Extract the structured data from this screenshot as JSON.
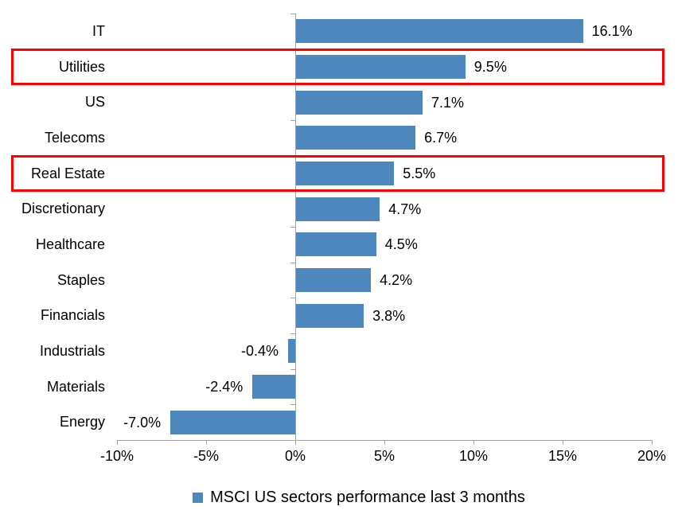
{
  "chart_data": {
    "type": "bar",
    "orientation": "horizontal",
    "title": "",
    "categories": [
      "IT",
      "Utilities",
      "US",
      "Telecoms",
      "Real Estate",
      "Discretionary",
      "Healthcare",
      "Staples",
      "Financials",
      "Industrials",
      "Materials",
      "Energy"
    ],
    "values": [
      16.1,
      9.5,
      7.1,
      6.7,
      5.5,
      4.7,
      4.5,
      4.2,
      3.8,
      -0.4,
      -2.4,
      -7.0
    ],
    "value_labels": [
      "16.1%",
      "9.5%",
      "7.1%",
      "6.7%",
      "5.5%",
      "4.7%",
      "4.5%",
      "4.2%",
      "3.8%",
      "-0.4%",
      "-2.4%",
      "-7.0%"
    ],
    "highlighted_categories": [
      "Utilities",
      "Real Estate"
    ],
    "x_axis": {
      "min": -10,
      "max": 20,
      "tick_values": [
        -10,
        -5,
        0,
        5,
        10,
        15,
        20
      ],
      "tick_labels": [
        "-10%",
        "-5%",
        "0%",
        "5%",
        "10%",
        "15%",
        "20%"
      ]
    },
    "ylabel": "",
    "xlabel": "",
    "grid": false,
    "legend": {
      "position": "bottom",
      "marker": "square",
      "label": "MSCI US sectors performance last 3 months"
    },
    "colors": {
      "bar": "#4E87BD",
      "highlight_box": "#FF0000",
      "axis": "#A3A3A3",
      "text": "#000000"
    }
  }
}
